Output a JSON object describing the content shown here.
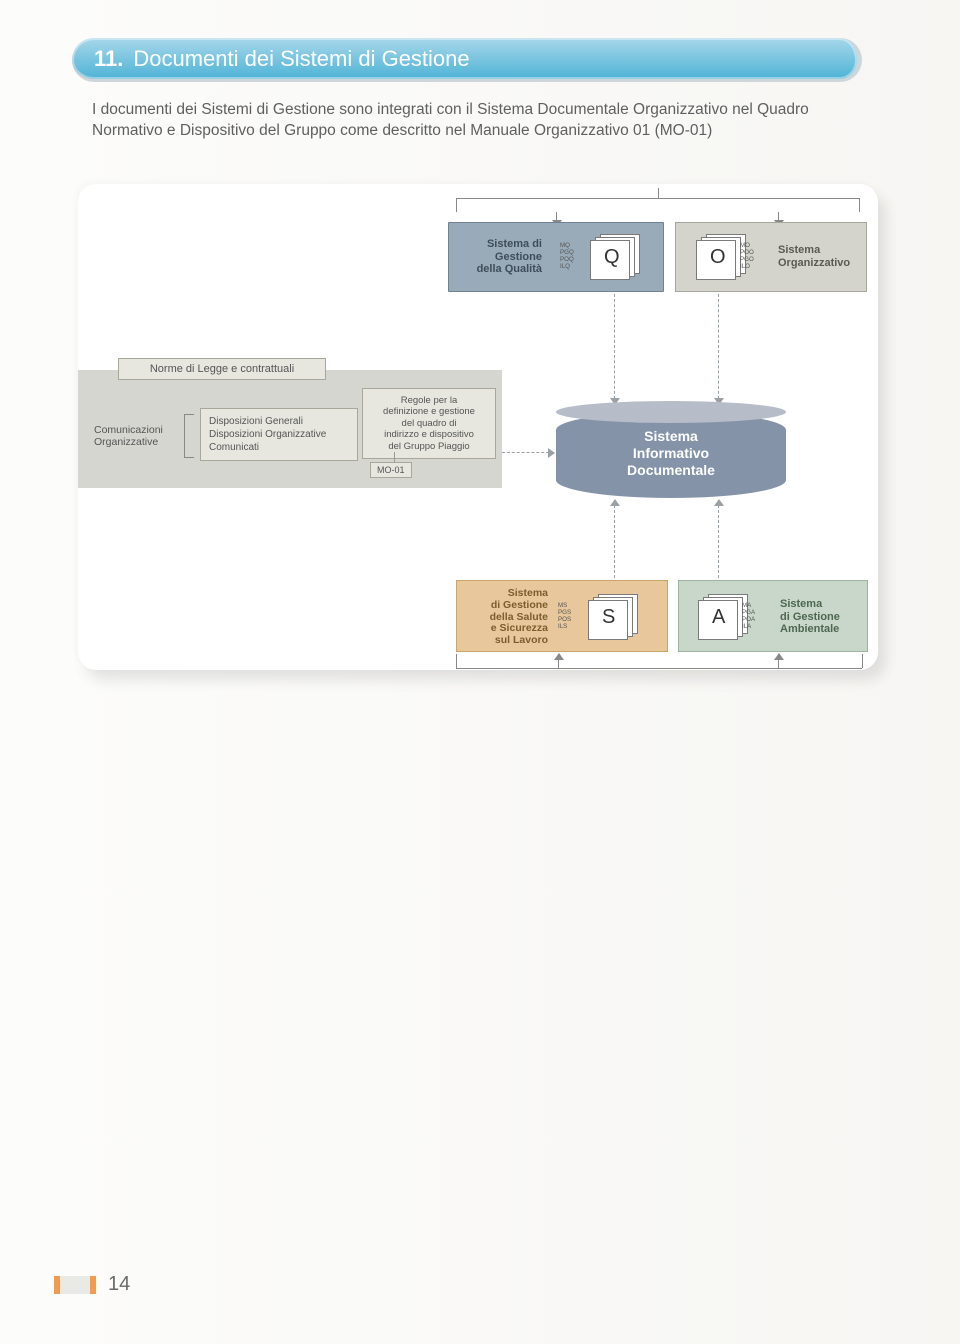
{
  "header": {
    "number": "11.",
    "title": "Documenti dei Sistemi di Gestione",
    "bg_gradient_top": "#a7d7ea",
    "bg_gradient_bottom": "#4eb3d6",
    "border_shadow": "#cfd6da",
    "text_color": "#ffffff",
    "num_fontsize": 22,
    "title_fontsize": 22
  },
  "intro": "I documenti dei Sistemi di Gestione sono integrati con il Sistema Documentale Organizzativo nel Quadro Normativo e Dispositivo del Gruppo come descritto nel Manuale Organizzativo 01 (MO-01)",
  "diagram": {
    "card_bg": "#ffffff",
    "card_radius": 18,
    "top": {
      "q_box": {
        "label": "Sistema di\nGestione\ndella Qualità",
        "letter": "Q",
        "codes": [
          "MQ",
          "PGQ",
          "POQ",
          "ILQ"
        ],
        "bg": "#99abb8",
        "border": "#6e8293",
        "label_color": "#3e4d59"
      },
      "o_box": {
        "label": "Sistema\nOrganizzativo",
        "letter": "O",
        "codes": [
          "MO",
          "POO",
          "PGO",
          "ILO"
        ],
        "bg": "#d4d4cc",
        "border": "#a6a79c",
        "label_color": "#5a5a50"
      }
    },
    "cylinder": {
      "label": "Sistema\nInformativo\nDocumentale",
      "body_color": "#8593a9",
      "top_color": "#b6bdc9",
      "text_color": "#ffffff",
      "fontsize": 14
    },
    "norme": {
      "panel_bg": "#d6d6d0",
      "title": "Norme di Legge e contrattuali",
      "com_org": "Comunicazioni\nOrganizzative",
      "disposizioni": "Disposizioni Generali\nDisposizioni Organizzative\nComunicati",
      "regole": "Regole per la\ndefinizione e gestione\ndel quadro di\nindirizzo e dispositivo\ndel Gruppo Piaggio",
      "tag": "MO-01",
      "box_bg": "#e7e7e0",
      "box_border": "#a7a79a"
    },
    "bottom": {
      "s_box": {
        "label": "Sistema\ndi Gestione\ndella Salute\ne Sicurezza\nsul Lavoro",
        "letter": "S",
        "codes": [
          "MS",
          "PGS",
          "POS",
          "ILS"
        ],
        "bg": "#e7c79b",
        "border": "#c9a569",
        "label_color": "#7b5d2f"
      },
      "a_box": {
        "label": "Sistema\ndi Gestione\nAmbientale",
        "letter": "A",
        "codes": [
          "MA",
          "PGA",
          "POA",
          "ILA"
        ],
        "bg": "#c9d7cb",
        "border": "#9fb3a1",
        "label_color": "#4d6750"
      }
    },
    "arrow_solid_color": "#888888",
    "arrow_dashed_color": "#9aa0a3"
  },
  "footer": {
    "page_number": "14",
    "accent_color": "#f29a4f",
    "muted_block": "#e9e9e5",
    "page_num_color": "#6a6a6a",
    "page_num_fontsize": 20
  },
  "page_bg_left": "#fcfcfb",
  "page_bg_right": "#f7f6f3"
}
